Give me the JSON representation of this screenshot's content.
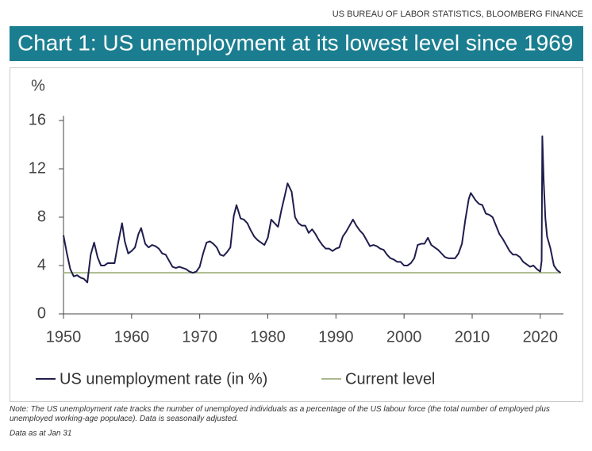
{
  "chart_data": {
    "type": "line",
    "source": "US BUREAU OF LABOR STATISTICS, BLOOMBERG FINANCE",
    "title": "Chart 1: US unemployment at its lowest level since 1969",
    "y_label": "%",
    "note": "Note: The US unemployment rate tracks the number of unemployed individuals as a percentage of the US labour force (the total number of employed plus unemployed working-age populace). Data is seasonally adjusted.",
    "date_note": "Data as at Jan 31",
    "xlim": [
      1950,
      2023.4
    ],
    "xticks": [
      1950,
      1960,
      1970,
      1980,
      1990,
      2000,
      2010,
      2020
    ],
    "ylim": [
      0,
      16
    ],
    "yticks": [
      0,
      4,
      8,
      12,
      16
    ],
    "series": [
      {
        "name": "US unemployment rate (in %)",
        "color": "#1f1d4d",
        "x": [
          1950,
          1950.5,
          1951,
          1951.5,
          1952,
          1952.5,
          1953,
          1953.5,
          1954,
          1954.5,
          1955,
          1955.5,
          1956,
          1956.5,
          1957,
          1957.5,
          1958,
          1958.6,
          1959,
          1959.5,
          1960,
          1960.5,
          1961,
          1961.4,
          1962,
          1962.5,
          1963,
          1963.5,
          1964,
          1964.5,
          1965,
          1965.5,
          1966,
          1966.5,
          1967,
          1967.5,
          1968,
          1968.5,
          1969,
          1969.5,
          1970,
          1970.5,
          1971,
          1971.5,
          1972,
          1972.5,
          1973,
          1973.5,
          1974,
          1974.5,
          1975,
          1975.4,
          1976,
          1976.5,
          1977,
          1977.5,
          1978,
          1978.5,
          1979,
          1979.5,
          1980,
          1980.5,
          1981,
          1981.5,
          1982,
          1982.5,
          1982.9,
          1983.5,
          1984,
          1984.5,
          1985,
          1985.5,
          1986,
          1986.5,
          1987,
          1987.5,
          1988,
          1988.5,
          1989,
          1989.5,
          1990,
          1990.5,
          1991,
          1991.5,
          1992,
          1992.5,
          1993,
          1993.5,
          1994,
          1994.5,
          1995,
          1995.5,
          1996,
          1996.5,
          1997,
          1997.5,
          1998,
          1998.5,
          1999,
          1999.5,
          2000,
          2000.5,
          2001,
          2001.5,
          2002,
          2002.5,
          2003,
          2003.5,
          2004,
          2004.5,
          2005,
          2005.5,
          2006,
          2006.5,
          2007,
          2007.5,
          2008,
          2008.5,
          2009,
          2009.5,
          2009.8,
          2010.5,
          2011,
          2011.5,
          2012,
          2012.5,
          2013,
          2013.5,
          2014,
          2014.5,
          2015,
          2015.5,
          2016,
          2016.5,
          2017,
          2017.5,
          2018,
          2018.5,
          2019,
          2019.5,
          2020,
          2020.2,
          2020.3,
          2020.5,
          2020.75,
          2021,
          2021.5,
          2022,
          2022.5,
          2023
        ],
        "values": [
          6.5,
          5.0,
          3.7,
          3.1,
          3.2,
          3.0,
          2.9,
          2.6,
          4.9,
          5.9,
          4.7,
          4.0,
          4.0,
          4.2,
          4.2,
          4.2,
          5.8,
          7.5,
          6.0,
          5.0,
          5.2,
          5.5,
          6.6,
          7.1,
          5.8,
          5.5,
          5.7,
          5.6,
          5.4,
          5.0,
          4.9,
          4.4,
          3.9,
          3.8,
          3.9,
          3.8,
          3.7,
          3.5,
          3.4,
          3.5,
          3.9,
          5.0,
          5.9,
          6.0,
          5.8,
          5.5,
          4.9,
          4.8,
          5.1,
          5.5,
          8.1,
          9.0,
          7.9,
          7.8,
          7.5,
          6.9,
          6.4,
          6.1,
          5.9,
          5.7,
          6.3,
          7.8,
          7.5,
          7.2,
          8.6,
          9.8,
          10.8,
          10.1,
          8.0,
          7.5,
          7.3,
          7.3,
          6.7,
          7.0,
          6.6,
          6.1,
          5.7,
          5.4,
          5.4,
          5.2,
          5.4,
          5.5,
          6.4,
          6.8,
          7.3,
          7.8,
          7.3,
          6.9,
          6.6,
          6.1,
          5.6,
          5.7,
          5.6,
          5.4,
          5.3,
          4.9,
          4.6,
          4.5,
          4.3,
          4.3,
          4.0,
          4.0,
          4.2,
          4.6,
          5.7,
          5.8,
          5.8,
          6.3,
          5.7,
          5.5,
          5.3,
          5.0,
          4.7,
          4.6,
          4.6,
          4.6,
          5.0,
          5.8,
          7.8,
          9.5,
          10.0,
          9.4,
          9.1,
          9.0,
          8.3,
          8.2,
          8.0,
          7.3,
          6.6,
          6.2,
          5.7,
          5.2,
          4.9,
          4.9,
          4.7,
          4.3,
          4.1,
          3.9,
          4.0,
          3.7,
          3.5,
          4.4,
          14.7,
          11.0,
          7.9,
          6.4,
          5.4,
          4.0,
          3.6,
          3.4
        ]
      },
      {
        "name": "Current level",
        "color": "#a9b98c",
        "x": [
          1950,
          2023
        ],
        "values": [
          3.4,
          3.4
        ]
      }
    ]
  }
}
